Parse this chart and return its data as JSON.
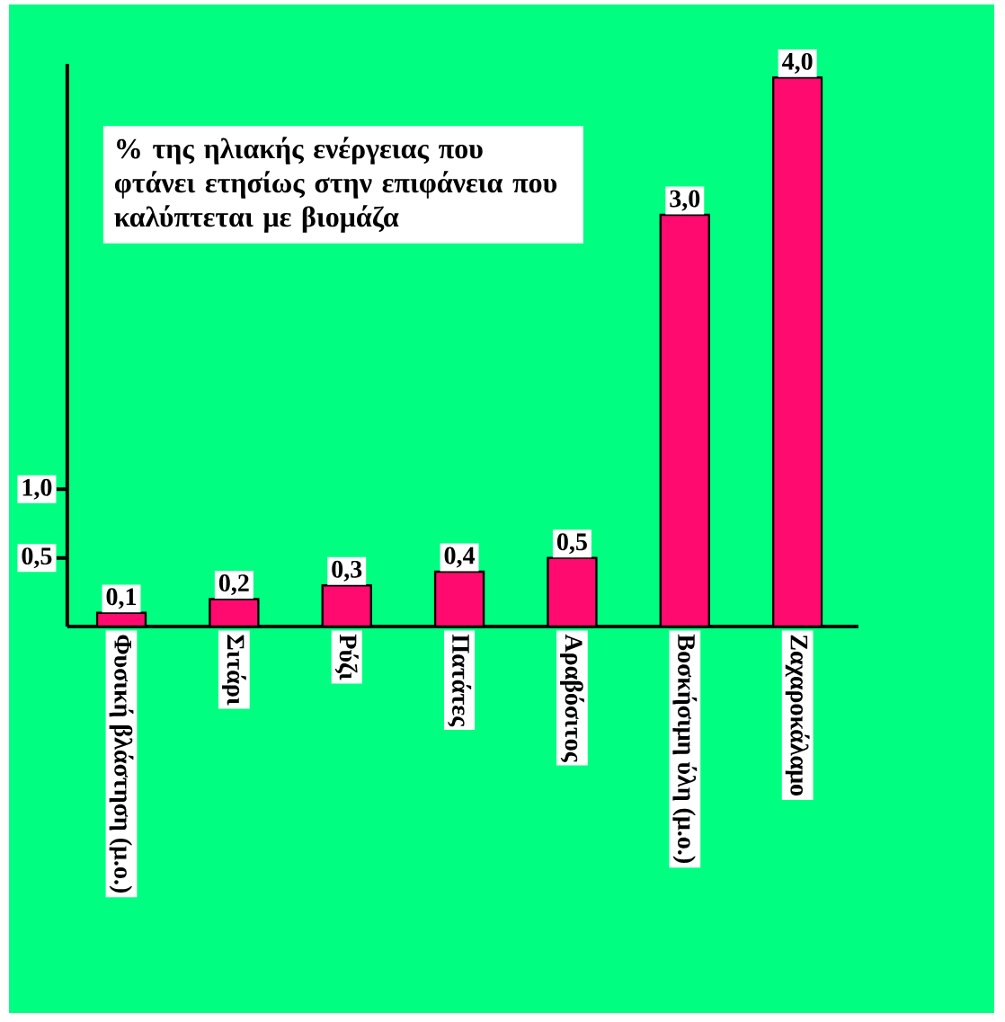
{
  "chart_data": {
    "type": "bar",
    "title": "% της ηλιακής ενέργειας που φτάνει ετησίως στην επιφάνεια που καλύπτεται με βιομάζα",
    "categories": [
      "Φυσική βλάστηση (μ.ο.)",
      "Σιτάρι",
      "Ρύζι",
      "Πατάτες",
      "Αραβόσιτος",
      "Βοσκήσιμη ύλη (μ.ο.)",
      "Ζαχαροκάλαμο"
    ],
    "values": [
      0.1,
      0.2,
      0.3,
      0.4,
      0.5,
      3.0,
      4.0
    ],
    "value_labels": [
      "0,1",
      "0,2",
      "0,3",
      "0,4",
      "0,5",
      "3,0",
      "4,0"
    ],
    "color": "#ff0a6e",
    "ylim": [
      0,
      4.1
    ],
    "yticks": [
      {
        "value": 0.5,
        "label": "0,5"
      },
      {
        "value": 1.0,
        "label": "1,0"
      }
    ]
  }
}
